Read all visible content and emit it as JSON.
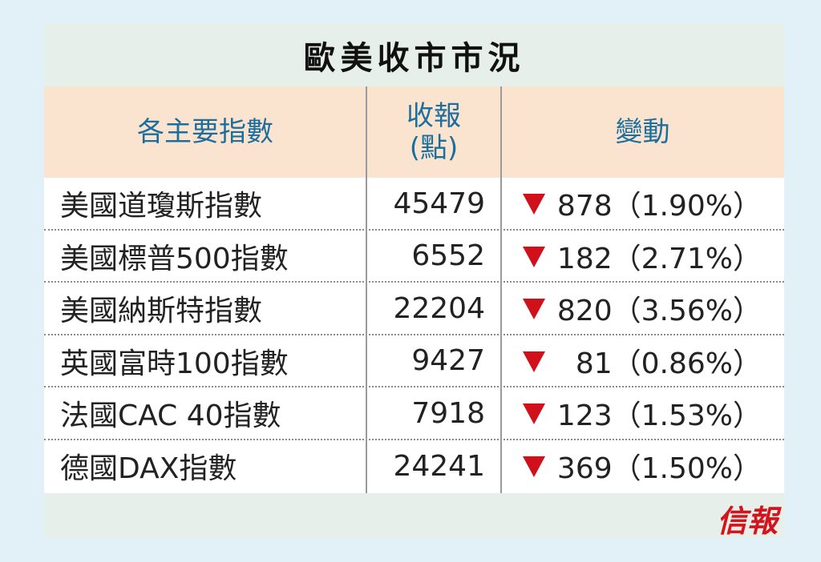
{
  "title": "歐美收市市況",
  "table": {
    "headers": [
      "各主要指數",
      "收報\n(點)",
      "變動"
    ],
    "rows": [
      [
        "美國道瓊斯指數",
        "45479",
        "878（1.90%）"
      ],
      [
        "美國標普500指數",
        "6552",
        "182（2.71%）"
      ],
      [
        "美國納斯特指數",
        "22204",
        "820（3.56%）"
      ],
      [
        "英國富時100指數",
        "9427",
        "81（0.86%）"
      ],
      [
        "法國CAC 40指數",
        "7918",
        "123（1.53%）"
      ],
      [
        "德國DAX指數",
        "24241",
        "369（1.50%）"
      ]
    ]
  },
  "logo": "信報"
}
